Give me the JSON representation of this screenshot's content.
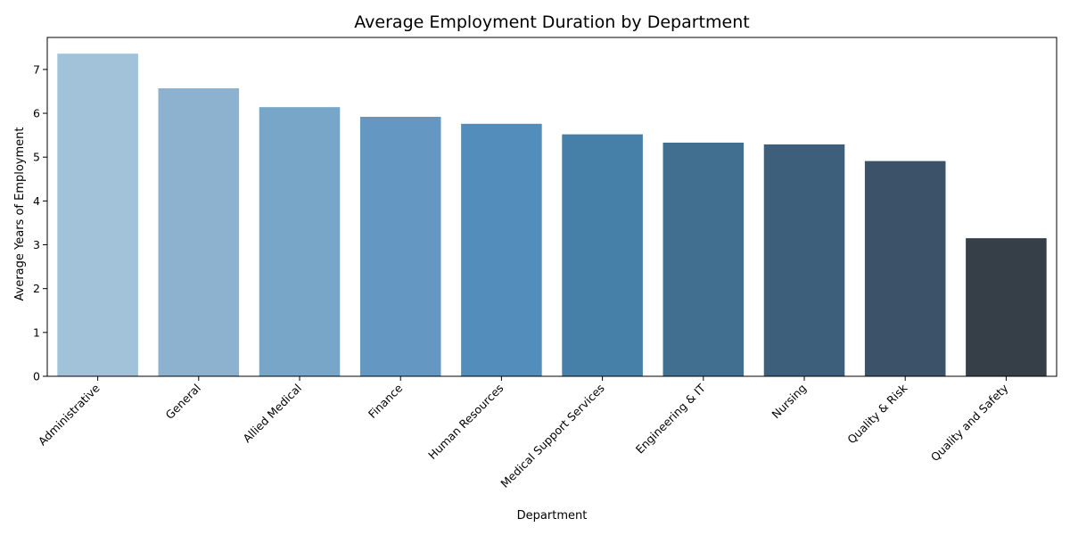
{
  "chart_data": {
    "type": "bar",
    "title": "Average Employment Duration by Department",
    "xlabel": "Department",
    "ylabel": "Average Years of Employment",
    "categories": [
      "Administrative",
      "General",
      "Allied Medical",
      "Finance",
      "Human Resources",
      "Medical Support Services",
      "Engineering & IT",
      "Nursing",
      "Quality & Risk",
      "Quality and Safety"
    ],
    "values": [
      7.36,
      6.57,
      6.14,
      5.92,
      5.76,
      5.52,
      5.33,
      5.29,
      4.91,
      3.15
    ],
    "colors": [
      "#a1c2d8",
      "#8cb2cf",
      "#77a6c8",
      "#6498c3",
      "#528dbb",
      "#467fa8",
      "#406f8f",
      "#3e5f7b",
      "#3b5268",
      "#363f48"
    ],
    "ylim": [
      0,
      7.73
    ],
    "yticks": [
      "0",
      "1",
      "2",
      "3",
      "4",
      "5",
      "6",
      "7"
    ],
    "grid": false,
    "legend": "none"
  }
}
